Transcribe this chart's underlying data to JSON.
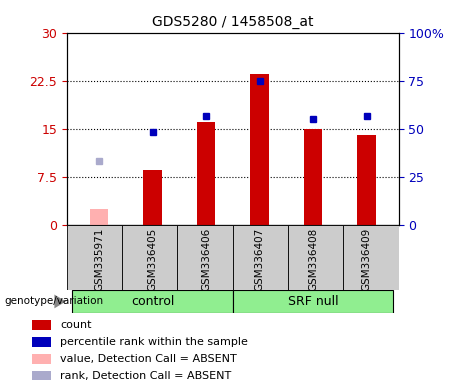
{
  "title": "GDS5280 / 1458508_at",
  "samples": [
    "GSM335971",
    "GSM336405",
    "GSM336406",
    "GSM336407",
    "GSM336408",
    "GSM336409"
  ],
  "count_values": [
    2.5,
    8.5,
    16.0,
    23.5,
    15.0,
    14.0
  ],
  "count_absent": [
    true,
    false,
    false,
    false,
    false,
    false
  ],
  "percentile_values_left": [
    10.0,
    14.5,
    17.0,
    22.5,
    16.5,
    17.0
  ],
  "percentile_absent": [
    true,
    false,
    false,
    false,
    false,
    false
  ],
  "left_ylim": [
    0,
    30
  ],
  "right_ylim": [
    0,
    100
  ],
  "left_yticks": [
    0,
    7.5,
    15.0,
    22.5,
    30
  ],
  "left_yticklabels": [
    "0",
    "7.5",
    "15",
    "22.5",
    "30"
  ],
  "right_yticks": [
    0,
    25,
    50,
    75,
    100
  ],
  "right_yticklabels": [
    "0",
    "25",
    "50",
    "75",
    "100%"
  ],
  "control_group": [
    0,
    1,
    2
  ],
  "srf_group": [
    3,
    4,
    5
  ],
  "bar_color_present": "#cc0000",
  "bar_color_absent": "#ffb0b0",
  "dot_color_present": "#0000bb",
  "dot_color_absent": "#aaaacc",
  "bar_width": 0.35,
  "left_ylabel_color": "#cc0000",
  "right_ylabel_color": "#0000bb",
  "grid_color": "black",
  "background_color": "#cccccc",
  "control_bg": "#90EE90",
  "srf_bg": "#90EE90",
  "legend_items": [
    {
      "label": "count",
      "color": "#cc0000"
    },
    {
      "label": "percentile rank within the sample",
      "color": "#0000bb"
    },
    {
      "label": "value, Detection Call = ABSENT",
      "color": "#ffb0b0"
    },
    {
      "label": "rank, Detection Call = ABSENT",
      "color": "#aaaacc"
    }
  ]
}
